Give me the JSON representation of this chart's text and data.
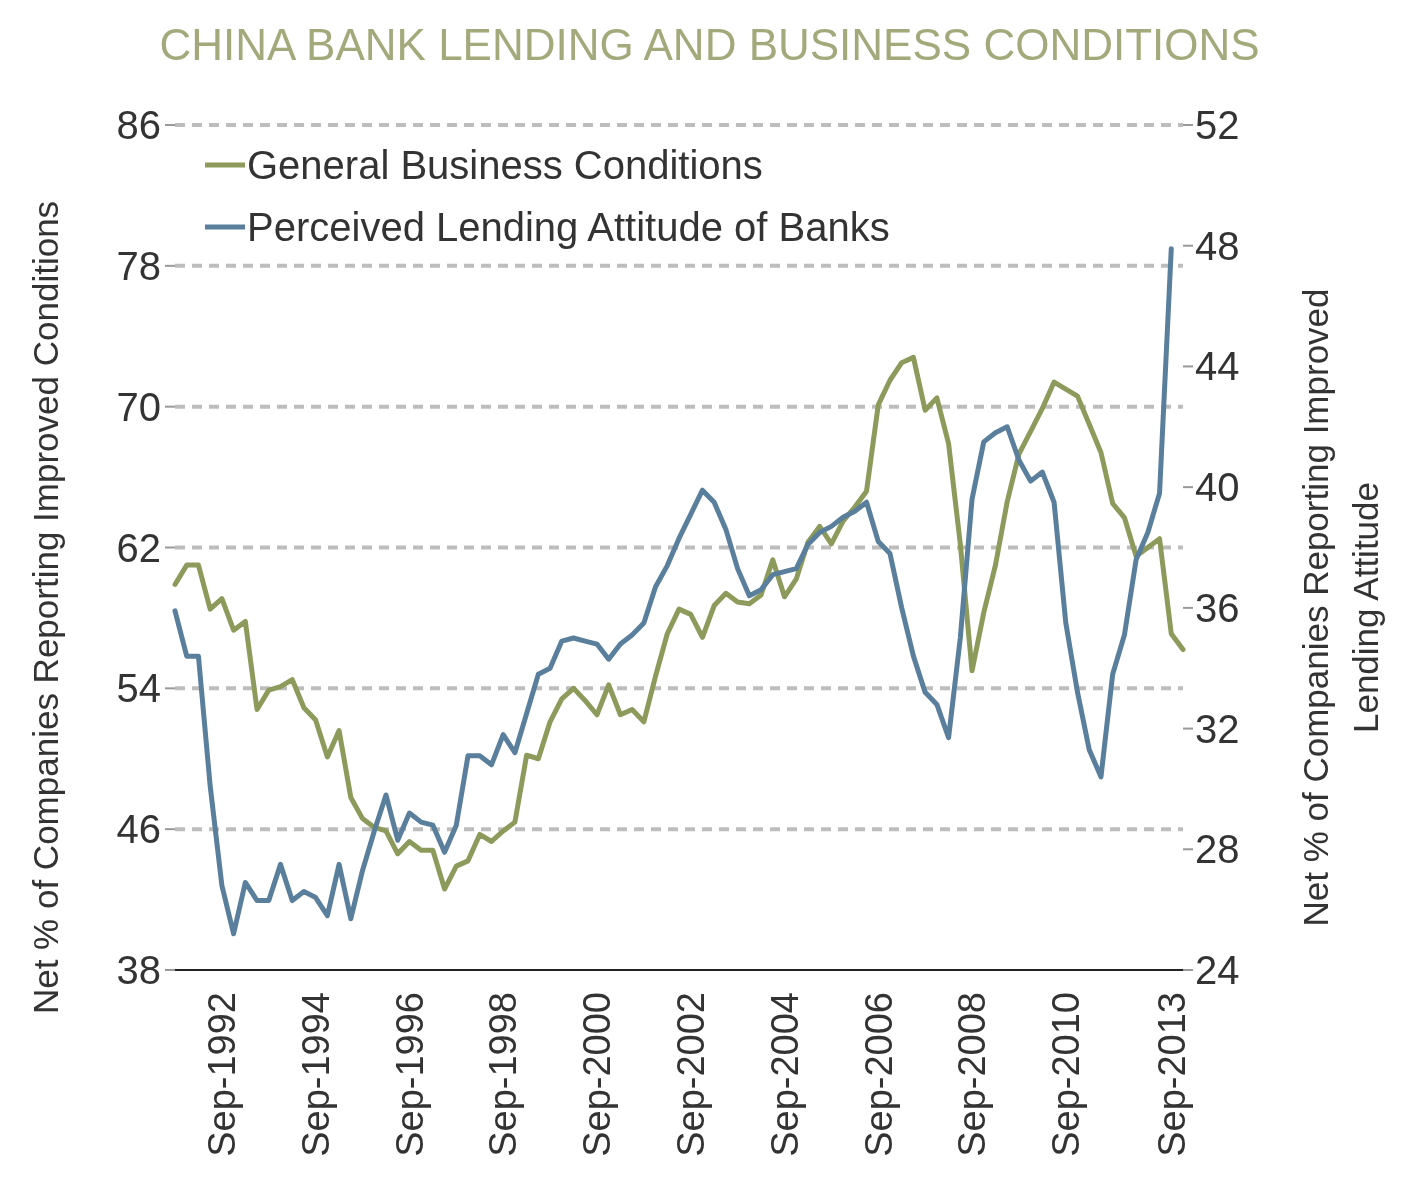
{
  "chart_data": {
    "type": "line",
    "title": "CHINA BANK LENDING AND BUSINESS CONDITIONS",
    "ylabel": "Net % of Companies Reporting Improved Conditions",
    "y2label": "Net % of Companies Reporting Improved Lending Attitude",
    "categories": [
      null,
      null,
      null,
      null,
      "Sep-1992",
      null,
      null,
      null,
      null,
      null,
      null,
      null,
      "Sep-1994",
      null,
      null,
      null,
      null,
      null,
      null,
      null,
      "Sep-1996",
      null,
      null,
      null,
      null,
      null,
      null,
      null,
      "Sep-1998",
      null,
      null,
      null,
      null,
      null,
      null,
      null,
      "Sep-2000",
      null,
      null,
      null,
      null,
      null,
      null,
      null,
      "Sep-2002",
      null,
      null,
      null,
      null,
      null,
      null,
      null,
      "Sep-2004",
      null,
      null,
      null,
      null,
      null,
      null,
      null,
      "Sep-2006",
      null,
      null,
      null,
      null,
      null,
      null,
      null,
      "Sep-2008",
      null,
      null,
      null,
      null,
      null,
      null,
      null,
      "Sep-2010",
      null,
      null,
      null,
      null,
      null,
      null,
      null,
      null,
      "Sep-2013",
      null
    ],
    "series": [
      {
        "name": "General Business Conditions",
        "color": "#8c9a5b",
        "values": [
          59.9,
          61.0,
          61.0,
          58.5,
          59.1,
          57.3,
          57.8,
          52.8,
          53.9,
          54.1,
          54.5,
          52.9,
          52.2,
          50.1,
          51.6,
          47.8,
          46.6,
          46.1,
          45.9,
          44.6,
          45.3,
          44.8,
          44.8,
          42.6,
          43.9,
          44.2,
          45.7,
          45.3,
          45.9,
          46.4,
          50.2,
          50.0,
          52.1,
          53.4,
          54.0,
          53.3,
          52.5,
          54.2,
          52.5,
          52.8,
          52.1,
          54.7,
          57.1,
          58.5,
          58.2,
          56.9,
          58.7,
          59.4,
          58.9,
          58.8,
          59.3,
          61.3,
          59.2,
          60.2,
          62.3,
          63.2,
          62.2,
          63.5,
          64.3,
          65.2,
          70.1,
          71.5,
          72.5,
          72.8,
          69.8,
          70.5,
          67.9,
          62.2,
          55.0,
          58.3,
          61.0,
          64.6,
          67.3,
          68.6,
          69.9,
          71.4,
          71.0,
          70.6,
          69.0,
          67.4,
          64.5,
          63.7,
          61.5,
          62.0,
          62.5,
          57.1,
          56.2
        ]
      },
      {
        "name": "Perceived Lending Attitude of Banks",
        "color": "#5a7f9c",
        "axis": "y2",
        "values": [
          35.9,
          34.4,
          34.4,
          30.1,
          26.8,
          25.2,
          26.9,
          26.3,
          26.3,
          27.5,
          26.3,
          26.6,
          26.4,
          25.8,
          27.5,
          25.7,
          27.3,
          28.6,
          29.8,
          28.3,
          29.2,
          28.9,
          28.8,
          27.9,
          28.8,
          31.1,
          31.1,
          30.8,
          31.8,
          31.2,
          32.5,
          33.8,
          34.0,
          34.9,
          35.0,
          34.9,
          34.8,
          34.3,
          34.8,
          35.1,
          35.5,
          36.7,
          37.4,
          38.3,
          39.1,
          39.9,
          39.5,
          38.6,
          37.3,
          36.4,
          36.6,
          37.1,
          37.2,
          37.3,
          38.1,
          38.5,
          38.7,
          39.0,
          39.2,
          39.5,
          38.2,
          37.8,
          36.0,
          34.4,
          33.2,
          32.8,
          31.7,
          35.0,
          39.6,
          41.5,
          41.8,
          42.0,
          40.9,
          40.2,
          40.5,
          39.5,
          35.5,
          33.2,
          31.3,
          30.4,
          33.8,
          35.1,
          37.6,
          38.5,
          39.8,
          47.9,
          null
        ]
      }
    ],
    "ylim": [
      38,
      86
    ],
    "yticks": [
      38,
      46,
      54,
      62,
      70,
      78,
      86
    ],
    "y2lim": [
      24,
      52
    ],
    "y2ticks": [
      24,
      28,
      32,
      36,
      40,
      44,
      48,
      52
    ],
    "grid": "y",
    "legend": "top left",
    "marker": "none",
    "line_style": "solid"
  }
}
